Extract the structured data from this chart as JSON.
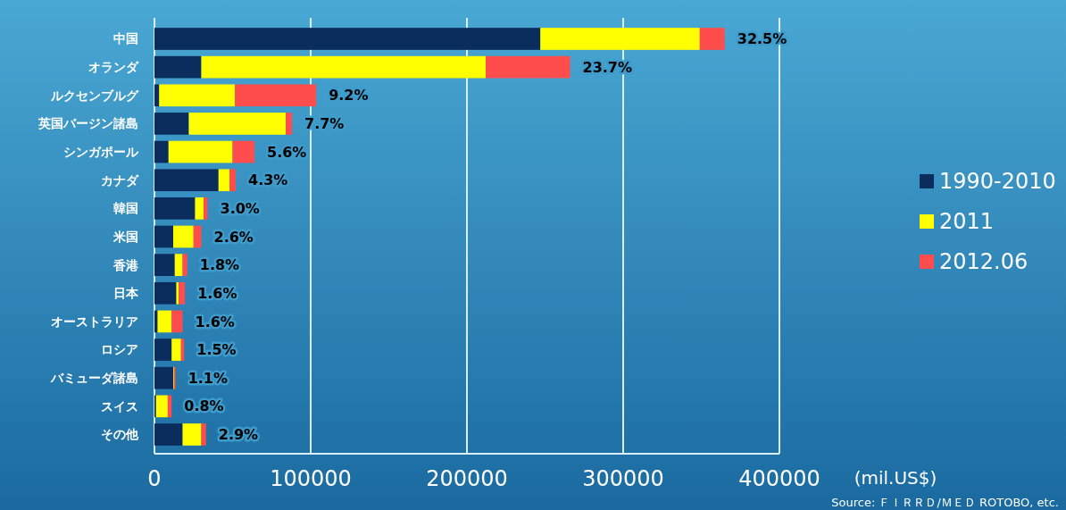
{
  "chart_data": {
    "type": "bar",
    "orientation": "horizontal",
    "stacked": true,
    "categories": [
      "中国",
      "オランダ",
      "ルクセンブルグ",
      "英国バージン諸島",
      "シンガポール",
      "カナダ",
      "韓国",
      "米国",
      "香港",
      "日本",
      "オーストラリア",
      "ロシア",
      "バミューダ諸島",
      "スイス",
      "その他"
    ],
    "series": [
      {
        "name": "1990-2010",
        "color": "#0b2d5e",
        "values": [
          247000,
          30000,
          3000,
          22000,
          9000,
          41000,
          26000,
          12000,
          13000,
          14000,
          2000,
          11000,
          12000,
          1000,
          18000
        ]
      },
      {
        "name": "2011",
        "color": "#ffff00",
        "values": [
          102000,
          182000,
          48500,
          62000,
          41000,
          7000,
          5500,
          13000,
          5000,
          1500,
          9000,
          6000,
          500,
          7500,
          12000
        ]
      },
      {
        "name": "2012.06",
        "color": "#ff4d4d",
        "values": [
          16000,
          54000,
          52000,
          4000,
          14000,
          4000,
          2500,
          5000,
          3000,
          4000,
          7000,
          2000,
          1000,
          2500,
          3000
        ]
      }
    ],
    "xlim": [
      0,
      400000
    ],
    "xticks": [
      0,
      100000,
      200000,
      300000,
      400000
    ],
    "xlabel": "(mil.US$)",
    "grid": "x",
    "legend": "right",
    "annotations": [
      "32.5%",
      "23.7%",
      "9.2%",
      "7.7%",
      "5.6%",
      "4.3%",
      "3.0%",
      "2.6%",
      "1.8%",
      "1.6%",
      "1.6%",
      "1.5%",
      "1.1%",
      "0.8%",
      "2.9%",
      "Source: ＦＩＲＲＤ/ＭＥＤ ROTOBO, etc."
    ]
  }
}
